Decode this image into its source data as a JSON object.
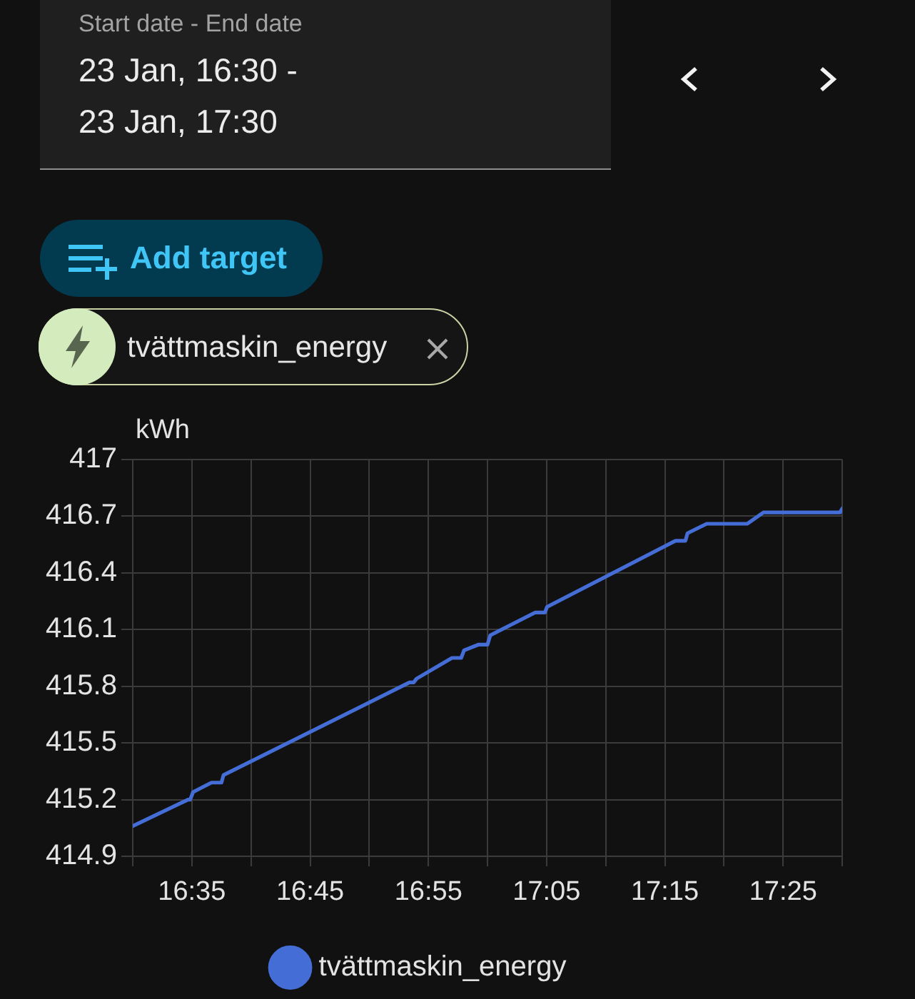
{
  "chart_data": {
    "type": "line",
    "ylabel": "kWh",
    "annotations": [
      "Start date - End date",
      "23 Jan, 16:30 - 23 Jan, 17:30",
      "Add target",
      "tvättmaskin_energy"
    ],
    "x": [
      16.5,
      16.578,
      16.581,
      16.585,
      16.611,
      16.625,
      16.628,
      16.89,
      16.896,
      16.9,
      16.95,
      16.963,
      16.967,
      16.987,
      17.0,
      17.004,
      17.067,
      17.081,
      17.084,
      17.265,
      17.279,
      17.282,
      17.309,
      17.366,
      17.389,
      17.497,
      17.5
    ],
    "series": [
      {
        "name": "tvättmaskin_energy",
        "color": "#456dd6",
        "values": [
          415.06,
          415.2,
          415.2,
          415.24,
          415.29,
          415.29,
          415.33,
          415.82,
          415.82,
          415.84,
          415.95,
          415.95,
          415.99,
          416.02,
          416.02,
          416.07,
          416.19,
          416.19,
          416.22,
          416.57,
          416.57,
          416.61,
          416.66,
          416.66,
          416.72,
          416.72,
          416.74
        ]
      }
    ],
    "xlim": [
      16.5,
      17.5
    ],
    "xticks": [
      {
        "value": 16.5,
        "label": null
      },
      {
        "value": 16.5833,
        "label": "16:35"
      },
      {
        "value": 16.6667,
        "label": null
      },
      {
        "value": 16.75,
        "label": "16:45"
      },
      {
        "value": 16.8333,
        "label": null
      },
      {
        "value": 16.9167,
        "label": "16:55"
      },
      {
        "value": 17,
        "label": null
      },
      {
        "value": 17.0833,
        "label": "17:05"
      },
      {
        "value": 17.1667,
        "label": null
      },
      {
        "value": 17.25,
        "label": "17:15"
      },
      {
        "value": 17.3333,
        "label": null
      },
      {
        "value": 17.4167,
        "label": "17:25"
      },
      {
        "value": 17.5,
        "label": null
      }
    ],
    "ylim": [
      414.9,
      417
    ],
    "yticks": [
      414.9,
      415.2,
      415.5,
      415.8,
      416.1,
      416.4,
      416.7,
      417
    ],
    "grid": true,
    "legend": "bottom"
  }
}
